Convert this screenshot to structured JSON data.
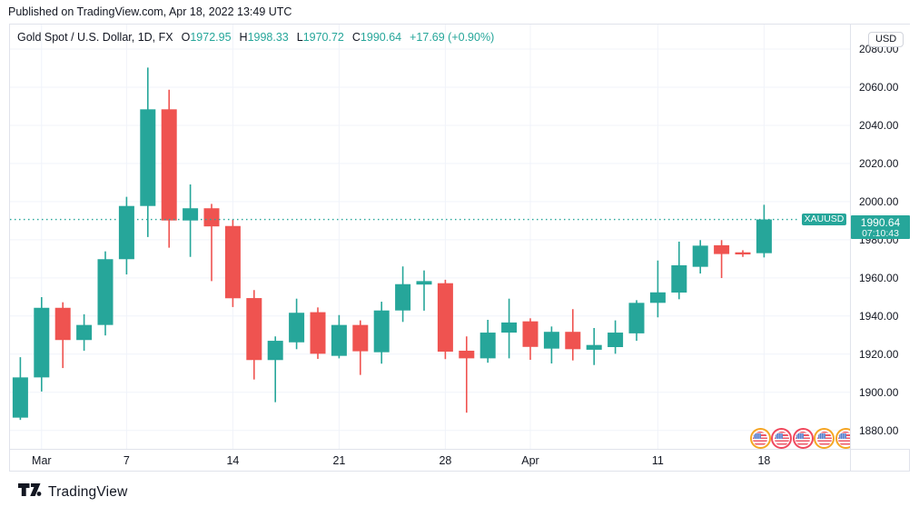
{
  "published_note": "Published on TradingView.com, Apr 18, 2022 13:49 UTC",
  "legend": {
    "title": "Gold Spot / U.S. Dollar, 1D, FX",
    "ohlc": [
      {
        "label": "O",
        "value": "1972.95"
      },
      {
        "label": "H",
        "value": "1998.33"
      },
      {
        "label": "L",
        "value": "1970.72"
      },
      {
        "label": "C",
        "value": "1990.64"
      }
    ],
    "change": "+17.69 (+0.90%)"
  },
  "price_axis": {
    "currency_button": "USD",
    "ticks": [
      "2080.00",
      "2060.00",
      "2040.00",
      "2020.00",
      "2000.00",
      "1980.00",
      "1960.00",
      "1940.00",
      "1920.00",
      "1900.00",
      "1880.00"
    ],
    "last_price_badge": {
      "price": "1990.64",
      "countdown": "07:10:43"
    }
  },
  "time_axis": {
    "ticks": [
      {
        "label": "Mar",
        "candle_index": 1
      },
      {
        "label": "7",
        "candle_index": 5
      },
      {
        "label": "14",
        "candle_index": 10
      },
      {
        "label": "21",
        "candle_index": 15
      },
      {
        "label": "28",
        "candle_index": 20
      },
      {
        "label": "Apr",
        "candle_index": 24
      },
      {
        "label": "11",
        "candle_index": 30
      },
      {
        "label": "18",
        "candle_index": 35
      }
    ]
  },
  "price_line": {
    "symbol_label": "XAUUSD",
    "price": 1990.64
  },
  "event_markers": {
    "country": "US",
    "description": "US economic calendar event flags",
    "rings": [
      "orange",
      "red",
      "red",
      "orange",
      "orange"
    ],
    "first_candle_index": 35
  },
  "watermark": {
    "brand": "TradingView"
  },
  "colors": {
    "up": "#26A69A",
    "down": "#EF5350",
    "grid": "#F0F3FA",
    "border": "#E0E3EB",
    "text": "#131722",
    "badge_bg": "#26A69A",
    "ring_orange": "#F5A623",
    "ring_red": "#F0475C"
  },
  "chart_data": {
    "type": "candlestick",
    "title": "Gold Spot / U.S. Dollar",
    "symbol": "XAUUSD",
    "timeframe": "1D",
    "exchange": "FX",
    "grid": true,
    "y_axis": {
      "min": 1880,
      "max": 2080,
      "tick_step": 20,
      "unit": "USD"
    },
    "last_price": 1990.64,
    "candles": [
      {
        "date": "Feb 28",
        "o": 1886.7,
        "h": 1918.4,
        "l": 1885.5,
        "c": 1907.8
      },
      {
        "date": "Mar 1",
        "o": 1907.8,
        "h": 1949.9,
        "l": 1900.4,
        "c": 1944.3
      },
      {
        "date": "Mar 2",
        "o": 1944.3,
        "h": 1947.2,
        "l": 1912.7,
        "c": 1927.4
      },
      {
        "date": "Mar 3",
        "o": 1927.4,
        "h": 1940.9,
        "l": 1921.8,
        "c": 1935.3
      },
      {
        "date": "Mar 4",
        "o": 1935.3,
        "h": 1973.9,
        "l": 1929.8,
        "c": 1969.8
      },
      {
        "date": "Mar 7",
        "o": 1969.8,
        "h": 2002.5,
        "l": 1961.8,
        "c": 1997.7
      },
      {
        "date": "Mar 8",
        "o": 1997.7,
        "h": 2070.3,
        "l": 1981.4,
        "c": 2048.4
      },
      {
        "date": "Mar 9",
        "o": 2048.4,
        "h": 2058.7,
        "l": 1975.8,
        "c": 1990.1
      },
      {
        "date": "Mar 10",
        "o": 1990.1,
        "h": 2009.0,
        "l": 1971.0,
        "c": 1996.5
      },
      {
        "date": "Mar 11",
        "o": 1996.5,
        "h": 1998.8,
        "l": 1958.3,
        "c": 1987.0
      },
      {
        "date": "Mar 14",
        "o": 1987.2,
        "h": 1990.5,
        "l": 1944.7,
        "c": 1949.3
      },
      {
        "date": "Mar 15",
        "o": 1949.4,
        "h": 1953.6,
        "l": 1906.7,
        "c": 1916.9
      },
      {
        "date": "Mar 16",
        "o": 1916.9,
        "h": 1929.3,
        "l": 1894.8,
        "c": 1927.0
      },
      {
        "date": "Mar 17",
        "o": 1926.2,
        "h": 1949.1,
        "l": 1922.6,
        "c": 1941.7
      },
      {
        "date": "Mar 18",
        "o": 1942.0,
        "h": 1944.5,
        "l": 1917.5,
        "c": 1920.2
      },
      {
        "date": "Mar 21",
        "o": 1919.1,
        "h": 1940.5,
        "l": 1917.8,
        "c": 1935.3
      },
      {
        "date": "Mar 22",
        "o": 1935.3,
        "h": 1937.7,
        "l": 1909.1,
        "c": 1921.5
      },
      {
        "date": "Mar 23",
        "o": 1921.0,
        "h": 1947.5,
        "l": 1915.0,
        "c": 1942.9
      },
      {
        "date": "Mar 24",
        "o": 1942.9,
        "h": 1966.0,
        "l": 1936.9,
        "c": 1956.7
      },
      {
        "date": "Mar 25",
        "o": 1956.5,
        "h": 1963.9,
        "l": 1942.8,
        "c": 1958.3
      },
      {
        "date": "Mar 28",
        "o": 1957.2,
        "h": 1959.0,
        "l": 1917.4,
        "c": 1921.3
      },
      {
        "date": "Mar 29",
        "o": 1921.8,
        "h": 1929.3,
        "l": 1889.3,
        "c": 1917.8
      },
      {
        "date": "Mar 30",
        "o": 1917.8,
        "h": 1938.0,
        "l": 1915.5,
        "c": 1931.3
      },
      {
        "date": "Mar 31",
        "o": 1931.3,
        "h": 1949.1,
        "l": 1917.8,
        "c": 1936.6
      },
      {
        "date": "Apr 1",
        "o": 1937.2,
        "h": 1938.8,
        "l": 1917.0,
        "c": 1923.8
      },
      {
        "date": "Apr 4",
        "o": 1922.9,
        "h": 1934.5,
        "l": 1915.1,
        "c": 1931.7
      },
      {
        "date": "Apr 5",
        "o": 1931.7,
        "h": 1943.6,
        "l": 1916.7,
        "c": 1922.6
      },
      {
        "date": "Apr 6",
        "o": 1922.3,
        "h": 1933.7,
        "l": 1914.3,
        "c": 1924.8
      },
      {
        "date": "Apr 7",
        "o": 1923.7,
        "h": 1937.7,
        "l": 1920.2,
        "c": 1931.3
      },
      {
        "date": "Apr 8",
        "o": 1930.9,
        "h": 1948.3,
        "l": 1927.0,
        "c": 1946.9
      },
      {
        "date": "Apr 11",
        "o": 1946.9,
        "h": 1969.1,
        "l": 1939.3,
        "c": 1952.4
      },
      {
        "date": "Apr 12",
        "o": 1952.3,
        "h": 1979.0,
        "l": 1948.8,
        "c": 1966.6
      },
      {
        "date": "Apr 13",
        "o": 1965.8,
        "h": 1979.8,
        "l": 1962.3,
        "c": 1976.9
      },
      {
        "date": "Apr 14",
        "o": 1977.1,
        "h": 1979.8,
        "l": 1959.9,
        "c": 1972.5
      },
      {
        "date": "Apr 15",
        "o": 1973.4,
        "h": 1974.5,
        "l": 1971.0,
        "c": 1972.3
      },
      {
        "date": "Apr 18",
        "o": 1972.95,
        "h": 1998.33,
        "l": 1970.72,
        "c": 1990.64
      }
    ]
  }
}
